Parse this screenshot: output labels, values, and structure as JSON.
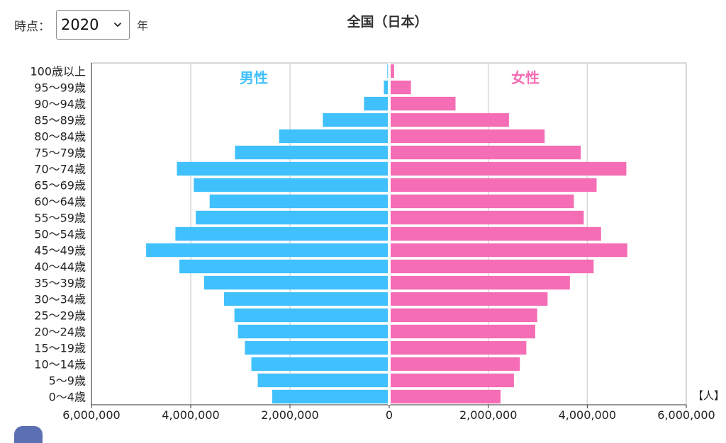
{
  "controls": {
    "label": "時点：",
    "year": "2020",
    "year_options": [
      "2020"
    ],
    "suffix": "年"
  },
  "colors": {
    "male": "#40c0fc",
    "female": "#f46db5",
    "grid": "#d7d7d7",
    "axis": "#333333"
  },
  "chart_data": {
    "type": "bar",
    "orientation": "horizontal-population-pyramid",
    "title": "全国（日本）",
    "xlabel": "",
    "ylabel": "",
    "unit_label": "【人】",
    "xlim": [
      -6000000,
      6000000
    ],
    "x_ticks": [
      {
        "value": -6000000,
        "label": "6,000,000"
      },
      {
        "value": -4000000,
        "label": "4,000,000"
      },
      {
        "value": -2000000,
        "label": "2,000,000"
      },
      {
        "value": 0,
        "label": "0"
      },
      {
        "value": 2000000,
        "label": "2,000,000"
      },
      {
        "value": 4000000,
        "label": "4,000,000"
      },
      {
        "value": 6000000,
        "label": "6,000,000"
      }
    ],
    "grid": true,
    "categories": [
      "100歳以上",
      "95〜99歳",
      "90〜94歳",
      "85〜89歳",
      "80〜84歳",
      "75〜79歳",
      "70〜74歳",
      "65〜69歳",
      "60〜64歳",
      "55〜59歳",
      "50〜54歳",
      "45〜49歳",
      "40〜44歳",
      "35〜39歳",
      "30〜34歳",
      "25〜29歳",
      "20〜24歳",
      "15〜19歳",
      "10〜14歳",
      "5〜9歳",
      "0〜4歳"
    ],
    "series": [
      {
        "name": "男性",
        "side": "left",
        "values": [
          10000,
          80000,
          480000,
          1310000,
          2190000,
          3080000,
          4250000,
          3910000,
          3590000,
          3870000,
          4280000,
          4870000,
          4200000,
          3700000,
          3300000,
          3090000,
          3020000,
          2880000,
          2750000,
          2620000,
          2330000
        ]
      },
      {
        "name": "女性",
        "side": "right",
        "values": [
          70000,
          410000,
          1310000,
          2390000,
          3110000,
          3840000,
          4760000,
          4160000,
          3700000,
          3900000,
          4250000,
          4780000,
          4100000,
          3620000,
          3170000,
          2960000,
          2920000,
          2740000,
          2610000,
          2490000,
          2220000
        ]
      }
    ]
  }
}
